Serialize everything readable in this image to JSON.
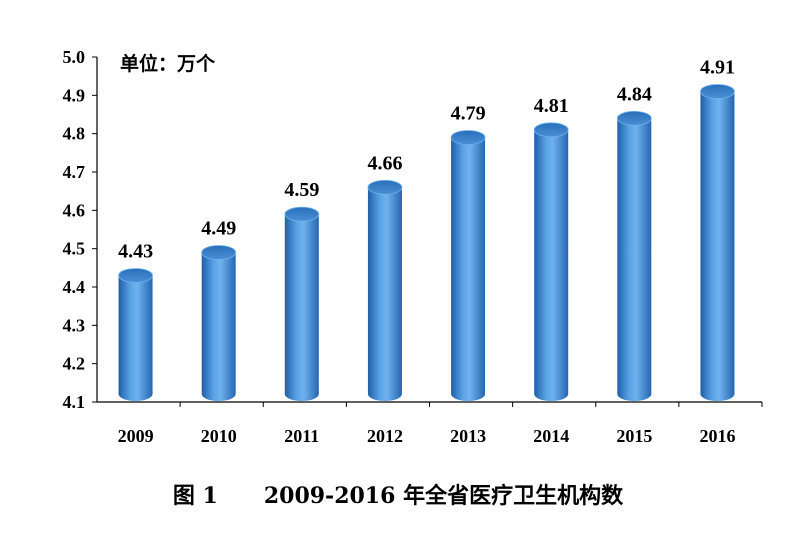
{
  "chart_data": {
    "type": "bar",
    "unit_label": "单位：万个",
    "categories": [
      "2009",
      "2010",
      "2011",
      "2012",
      "2013",
      "2014",
      "2015",
      "2016"
    ],
    "values": [
      4.43,
      4.49,
      4.59,
      4.66,
      4.79,
      4.81,
      4.84,
      4.91
    ],
    "data_labels": [
      "4.43",
      "4.49",
      "4.59",
      "4.66",
      "4.79",
      "4.81",
      "4.84",
      "4.91"
    ],
    "y_ticks": [
      "4.1",
      "4.2",
      "4.3",
      "4.4",
      "4.5",
      "4.6",
      "4.7",
      "4.8",
      "4.9",
      "5.0"
    ],
    "ylim": [
      4.1,
      5.0
    ],
    "grid": false,
    "bar_color": "#4a90d8",
    "bar_style": "3d-cylinder"
  },
  "caption": {
    "figure_no": "图 1",
    "title": "2009-2016 年全省医疗卫生机构数"
  }
}
